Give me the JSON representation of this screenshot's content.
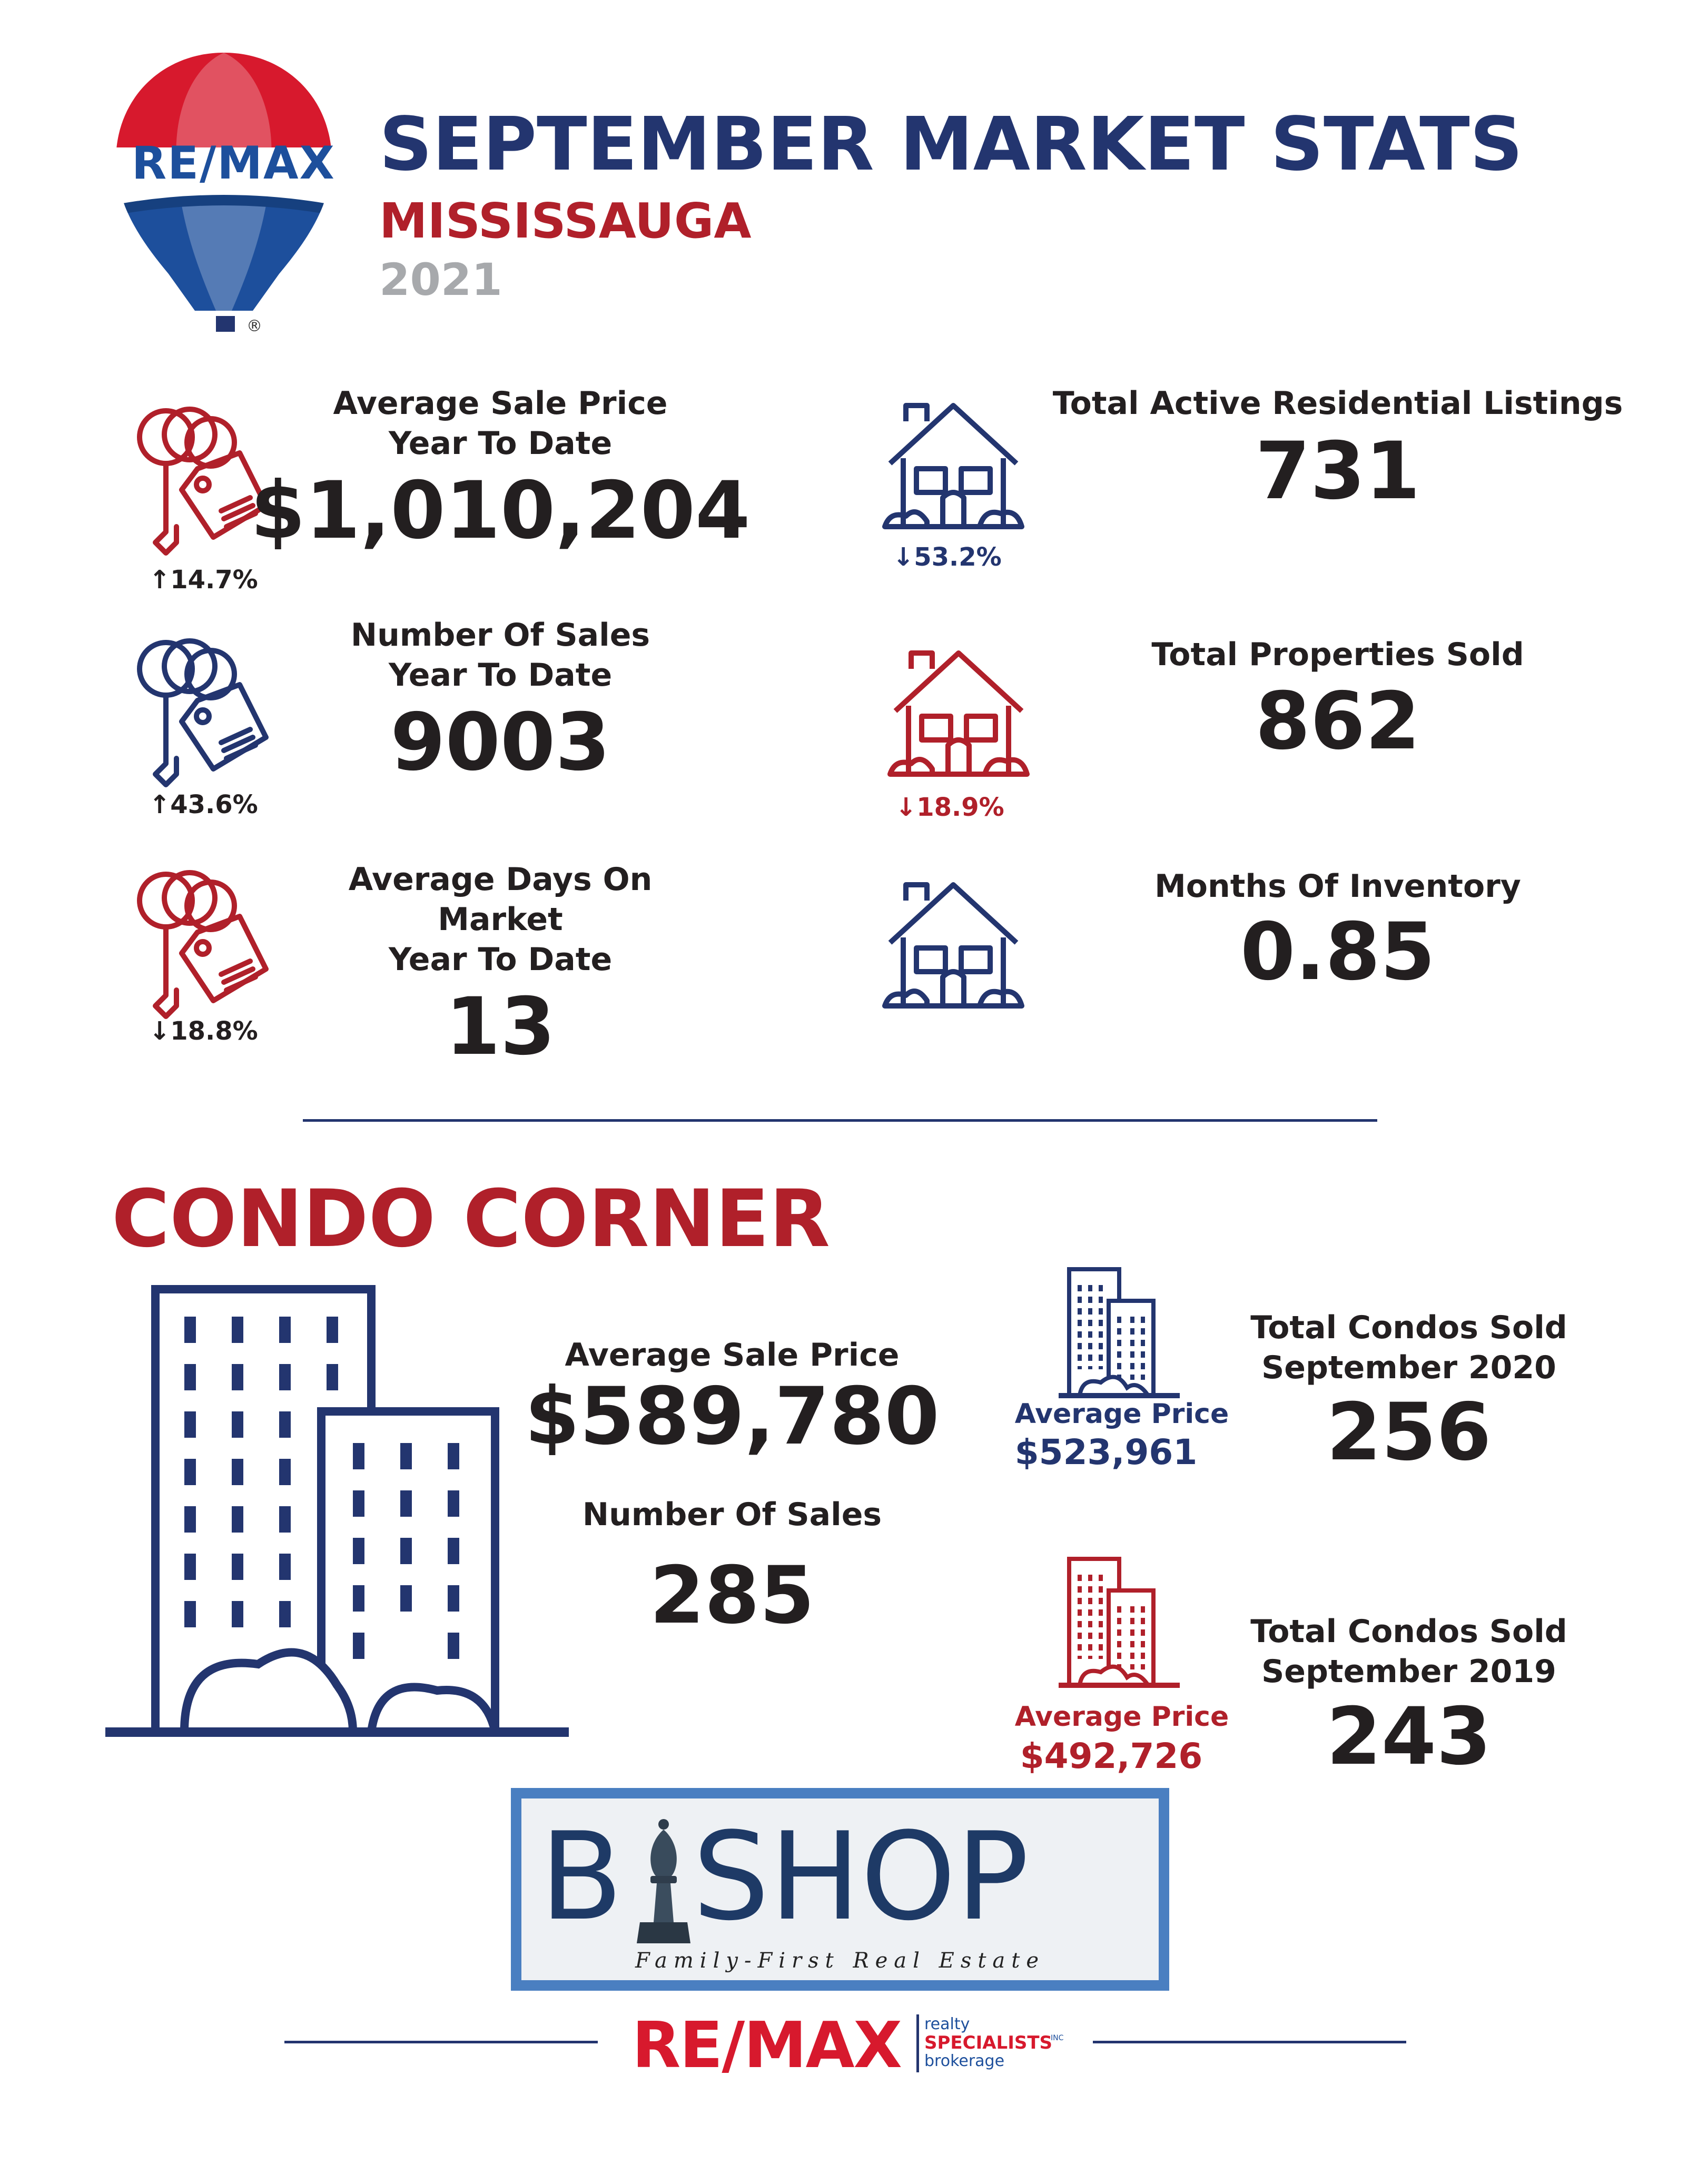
{
  "brand": {
    "balloon_logo_text": "RE/MAX",
    "registered_mark": "®",
    "footer_remax": "RE/MAX",
    "footer_sub_line1": "realty",
    "footer_sub_line2": "SPECIALISTS",
    "footer_sub_inc": "INC",
    "footer_sub_line3": "brokerage",
    "bishop_left": "B",
    "bishop_right": "SHOP",
    "bishop_tagline": "Family-First Real Estate",
    "colors": {
      "navy": "#23356f",
      "red": "#b0202a",
      "gray": "#a7a9ac",
      "bishop_blue": "#4a7fc1"
    }
  },
  "header": {
    "title": "SEPTEMBER MARKET STATS",
    "city": "MISSISSAUGA",
    "year": "2021"
  },
  "stats_left": [
    {
      "label_line1": "Average Sale Price",
      "label_line2": "Year To Date",
      "label_line3": "",
      "value": "$1,010,204",
      "change": "↑14.7%",
      "icon": "keys-tag-icon",
      "color": "red"
    },
    {
      "label_line1": "Number Of Sales",
      "label_line2": "Year To Date",
      "label_line3": "",
      "value": "9003",
      "change": "↑43.6%",
      "icon": "keys-tag-icon",
      "color": "navy"
    },
    {
      "label_line1": "Average Days On",
      "label_line2": "Market",
      "label_line3": "Year To Date",
      "value": "13",
      "change": "↓18.8%",
      "icon": "keys-tag-icon",
      "color": "red"
    }
  ],
  "stats_right": [
    {
      "label": "Total Active Residential Listings",
      "value": "731",
      "change": "↓53.2%",
      "icon": "house-icon",
      "color": "navy"
    },
    {
      "label": "Total Properties Sold",
      "value": "862",
      "change": "↓18.9%",
      "icon": "house-icon",
      "color": "red"
    },
    {
      "label": "Months Of Inventory",
      "value": "0.85",
      "change": "",
      "icon": "house-icon",
      "color": "navy"
    }
  ],
  "condo": {
    "heading": "CONDO CORNER",
    "avg_price_label": "Average Sale Price",
    "avg_price_value": "$589,780",
    "sales_label": "Number Of Sales",
    "sales_value": "285",
    "compare": [
      {
        "label_line1": "Total Condos Sold",
        "label_line2": "September 2020",
        "value": "256",
        "avg_label": "Average Price",
        "avg_value": "$523,961",
        "color": "navy"
      },
      {
        "label_line1": "Total Condos Sold",
        "label_line2": "September 2019",
        "value": "243",
        "avg_label": "Average Price",
        "avg_value": "$492,726",
        "color": "red"
      }
    ]
  }
}
